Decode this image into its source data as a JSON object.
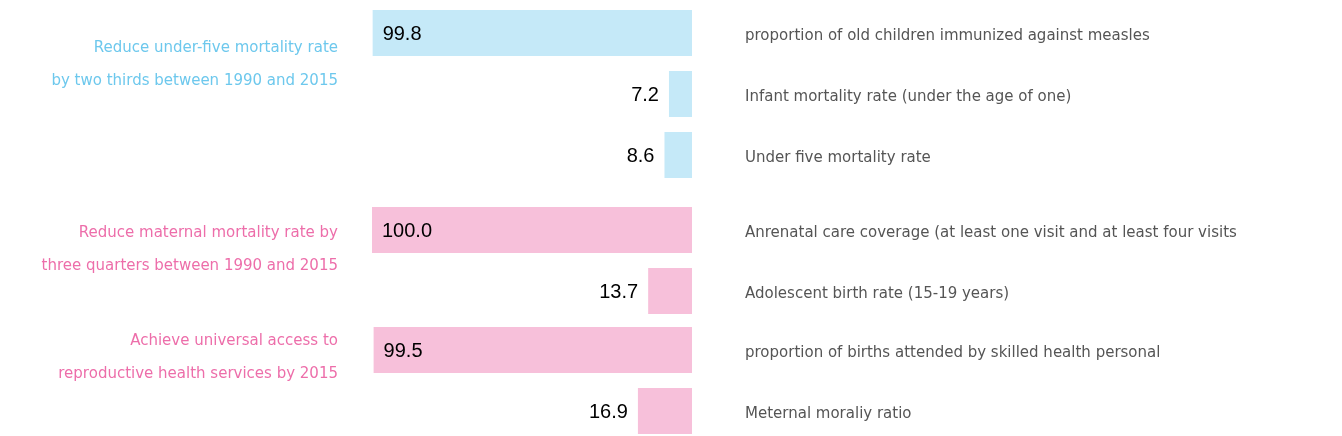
{
  "chart_data": {
    "type": "bar",
    "orientation": "horizontal",
    "xlim": [
      100,
      0
    ],
    "data_labels": true,
    "categories": [
      "proportion of old children immunized against measles",
      "Infant mortality rate (under the age of one)",
      "Under five mortality rate",
      "Anrenatal care coverage (at least one visit  and at least four visits",
      "Adolescent birth rate (15-19 years)",
      "proportion of births attended by skilled health personal",
      "Meternal moraliy ratio"
    ],
    "values": [
      99.8,
      7.2,
      8.6,
      100.0,
      13.7,
      99.5,
      16.9
    ],
    "value_labels": [
      "99.8",
      "7.2",
      "8.6",
      "100.0",
      "13.7",
      "99.5",
      "16.9"
    ],
    "colors": [
      "#c5e9f8",
      "#c5e9f8",
      "#c5e9f8",
      "#f7c0da",
      "#f7c0da",
      "#f7c0da",
      "#f7c0da"
    ],
    "annotations": [
      "Reduce under-five mortality rate\nby two thirds between 1990 and 2015",
      "Reduce maternal mortality rate by\nthree quarters between 1990 and 2015",
      "Achieve universal access to\nreproductive health services by 2015"
    ]
  }
}
